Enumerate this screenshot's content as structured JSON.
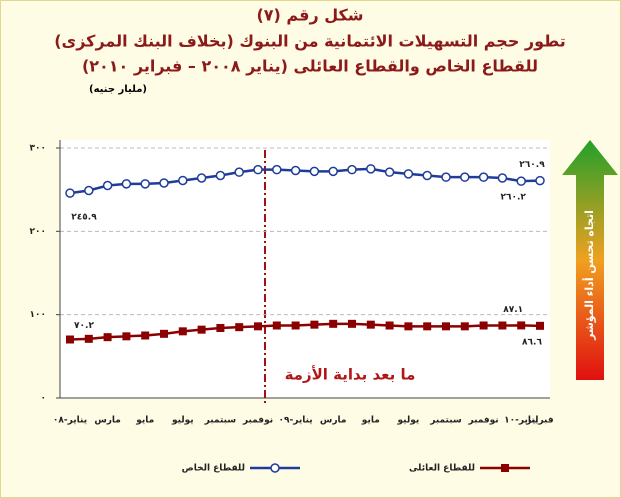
{
  "chart_data": {
    "type": "line",
    "title": "شكل رقم (٧)",
    "subtitle": [
      "تطور حجم التسهيلات الائتمانية من البنوك (بخلاف البنك المركزى)",
      "للقطاع الخاص والقطاع العائلى (يناير ٢٠٠٨ – فبراير ٢٠١٠)"
    ],
    "y_label": "(مليار جنيه)",
    "annotation": "ما بعد بداية الأزمة",
    "arrow_label": "اتجاه تحسن أداء المؤشر",
    "categories": [
      "يناير-٠٨",
      null,
      "مارس",
      null,
      "مايو",
      null,
      "يوليو",
      null,
      "سبتمبر",
      null,
      "نوفمبر",
      null,
      "يناير-٠٩",
      null,
      "مارس",
      null,
      "مايو",
      null,
      "يوليو",
      null,
      "سبتمبر",
      null,
      "نوفمبر",
      null,
      "يناير-١٠",
      "فبراير"
    ],
    "series": [
      {
        "name": "للقطاع الخاص",
        "color": "#1f3c99",
        "marker": "circle",
        "values": [
          245.9,
          249,
          255,
          257,
          257,
          258,
          261,
          264,
          267,
          271,
          274,
          274,
          273,
          272,
          272,
          274,
          275,
          271,
          269,
          267,
          265,
          265,
          265,
          264,
          260.2,
          260.9
        ],
        "value_labels": [
          "٢٤٥.٩",
          null,
          null,
          null,
          null,
          null,
          null,
          null,
          null,
          null,
          null,
          null,
          null,
          null,
          null,
          null,
          null,
          null,
          null,
          null,
          null,
          null,
          null,
          null,
          "٢٦٠.٢",
          "٢٦٠.٩"
        ]
      },
      {
        "name": "للقطاع العائلى",
        "color": "#8b0000",
        "marker": "square",
        "values": [
          70.2,
          71,
          73,
          74,
          75,
          77,
          80,
          82,
          84,
          85,
          86,
          87,
          87,
          88,
          89,
          89,
          88,
          87,
          86,
          86,
          86,
          86,
          87,
          87,
          87.1,
          86.6
        ],
        "value_labels": [
          "٧٠.٢",
          null,
          null,
          null,
          null,
          null,
          null,
          null,
          null,
          null,
          null,
          null,
          null,
          null,
          null,
          null,
          null,
          null,
          null,
          null,
          null,
          null,
          null,
          null,
          "٨٧.١",
          "٨٦.٦"
        ]
      }
    ],
    "ylim": [
      0,
      300
    ],
    "yticks": [
      {
        "value": 0,
        "label": "٠"
      },
      {
        "value": 100,
        "label": "١٠٠"
      },
      {
        "value": 200,
        "label": "٢٠٠"
      },
      {
        "value": 300,
        "label": "٣٠٠"
      }
    ],
    "grid": true
  }
}
